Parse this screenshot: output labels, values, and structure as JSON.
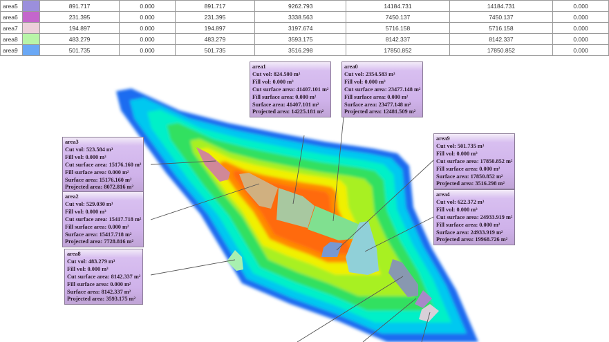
{
  "table": {
    "rows": [
      {
        "name": "area5",
        "color": "#9b8fdc",
        "values": [
          "891.717",
          "0.000",
          "891.717",
          "9262.793",
          "14184.731",
          "14184.731",
          "0.000"
        ]
      },
      {
        "name": "area6",
        "color": "#c466cc",
        "values": [
          "231.395",
          "0.000",
          "231.395",
          "3338.563",
          "7450.137",
          "7450.137",
          "0.000"
        ]
      },
      {
        "name": "area7",
        "color": "#ecd0da",
        "values": [
          "194.897",
          "0.000",
          "194.897",
          "3197.674",
          "5716.158",
          "5716.158",
          "0.000"
        ]
      },
      {
        "name": "area8",
        "color": "#b8f5a8",
        "values": [
          "483.279",
          "0.000",
          "483.279",
          "3593.175",
          "8142.337",
          "8142.337",
          "0.000"
        ]
      },
      {
        "name": "area9",
        "color": "#6aa8f5",
        "values": [
          "501.735",
          "0.000",
          "501.735",
          "3516.298",
          "17850.852",
          "17850.852",
          "0.000"
        ]
      }
    ]
  },
  "labels": [
    {
      "id": "area1",
      "lines": [
        "area1",
        "Cut vol: 824.500 m³",
        "Fill vol: 0.000 m³",
        "Cut surface area: 41407.101 m²",
        "Fill surface area: 0.000 m²",
        "Surface area: 41407.101 m²",
        "Projected area: 14225.181 m²"
      ]
    },
    {
      "id": "area0",
      "lines": [
        "area0",
        "Cut vol: 2354.583 m³",
        "Fill vol: 0.000 m³",
        "Cut surface area: 23477.148 m²",
        "Fill surface area: 0.000 m²",
        "Surface area: 23477.148 m²",
        "Projected area: 12481.509 m²"
      ]
    },
    {
      "id": "area3",
      "lines": [
        "area3",
        "Cut vol: 523.584 m³",
        "Fill vol: 0.000 m³",
        "Cut surface area: 15176.160 m²",
        "Fill surface area: 0.000 m²",
        "Surface area: 15176.160 m²",
        "Projected area: 8072.816 m²"
      ]
    },
    {
      "id": "area2",
      "lines": [
        "area2",
        "Cut vol: 529.030 m³",
        "Fill vol: 0.000 m³",
        "Cut surface area: 15417.718 m²",
        "Fill surface area: 0.000 m²",
        "Surface area: 15417.718 m²",
        "Projected area: 7728.816 m²"
      ]
    },
    {
      "id": "area8",
      "lines": [
        "area8",
        "Cut vol: 483.279 m³",
        "Fill vol: 0.000 m³",
        "Cut surface area: 8142.337 m²",
        "Fill surface area: 0.000 m²",
        "Surface area: 8142.337 m²",
        "Projected area: 3593.175 m²"
      ]
    },
    {
      "id": "area9",
      "lines": [
        "area9",
        "Cut vol: 501.735 m³",
        "Fill vol: 0.000 m³",
        "Cut surface area: 17850.852 m²",
        "Fill surface area: 0.000 m²",
        "Surface area: 17850.852 m²",
        "Projected area: 3516.298 m²"
      ]
    },
    {
      "id": "area4",
      "lines": [
        "area4",
        "Cut vol: 622.372 m³",
        "Fill vol: 0.000 m³",
        "Cut surface area: 24933.919 m²",
        "Fill surface area: 0.000 m²",
        "Surface area: 24933.919 m²",
        "Projected area: 19968.726 m²"
      ]
    }
  ],
  "colors": {
    "terrain": [
      "#1f6cf0",
      "#00c8f0",
      "#00f0c8",
      "#30e060",
      "#a8f020",
      "#f0f000",
      "#ff8a00",
      "#ff6a10"
    ],
    "area0": "#80e090",
    "area1": "#a8c8a0",
    "area2": "#d0b080",
    "area3": "#d08898",
    "area4": "#90d0d8",
    "area5": "#8898b0",
    "area6": "#a888c8",
    "area7": "#d8d0d8",
    "area8": "#a8f0b0",
    "area9": "#7898d0"
  }
}
